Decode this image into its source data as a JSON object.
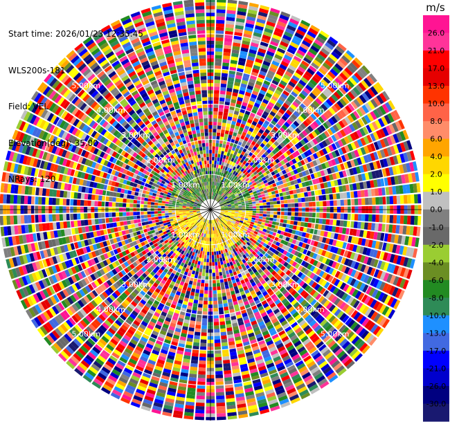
{
  "info": {
    "start_time": "Start time: 2026/01/23 12:35:45",
    "instrument": "WLS200s-181",
    "field": "Field: VEL",
    "elevation": "Elevation(deg): 35.00",
    "nrays": "NRays: 120"
  },
  "chart_data": {
    "type": "heatmap",
    "projection": "polar-ppi",
    "field": "VEL",
    "units": "m/s",
    "n_rays": 120,
    "max_range_km": 6.0,
    "range_rings_km": [
      1,
      2,
      3,
      4,
      5,
      6
    ],
    "ring_labels": [
      "1.00km",
      "2.00km",
      "3.00km",
      "4.00km",
      "5.00km"
    ],
    "near_range_pattern": {
      "northern_half": "green (approx -6 to -4 m/s) within ~1.2 km",
      "southern_half": "yellow/orange (approx 4 to 6 m/s) within ~1.2 km"
    },
    "far_range_pattern": "noise across full velocity range",
    "colorbar": {
      "title": "m/s",
      "ticks": [
        "26.0",
        "21.0",
        "17.0",
        "13.0",
        "10.0",
        "8.0",
        "6.0",
        "4.0",
        "2.0",
        "1.0",
        "0.0",
        "-1.0",
        "-2.0",
        "-4.0",
        "-6.0",
        "-8.0",
        "-10.0",
        "-13.0",
        "-17.0",
        "-21.0",
        "-26.0",
        "-30.0"
      ],
      "colors": [
        "#ff1493",
        "#ff3399",
        "#ff0000",
        "#e60000",
        "#ff3300",
        "#ff6347",
        "#ff8c69",
        "#ffa500",
        "#ffd700",
        "#ffff00",
        "#c0c0c0",
        "#808080",
        "#696969",
        "#9acd32",
        "#6b8e23",
        "#228b22",
        "#2e8b57",
        "#1e90ff",
        "#4169e1",
        "#0000ff",
        "#0000cd",
        "#000080",
        "#191970"
      ]
    }
  }
}
